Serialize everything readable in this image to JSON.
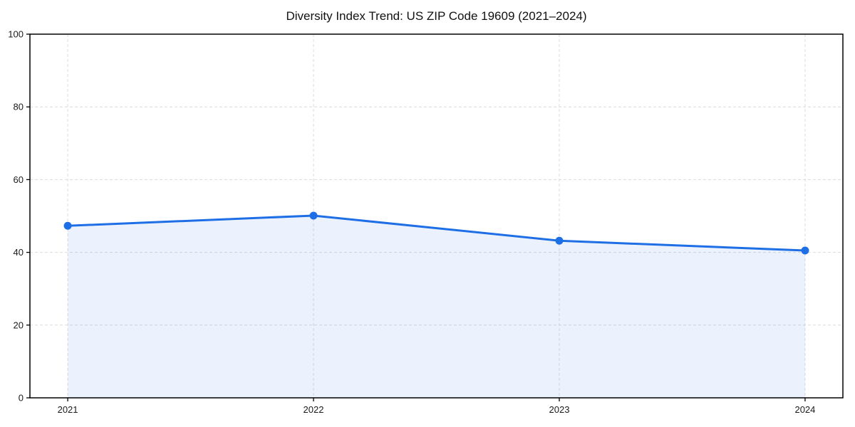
{
  "chart_data": {
    "type": "area",
    "title": "Diversity Index Trend: US ZIP Code 19609 (2021–2024)",
    "x": [
      "2021",
      "2022",
      "2023",
      "2024"
    ],
    "series": [
      {
        "name": "Diversity Index",
        "values": [
          47.3,
          50.1,
          43.2,
          40.5
        ]
      }
    ],
    "xlabel": "",
    "ylabel": "",
    "ylim": [
      0,
      100
    ],
    "yticks": [
      0,
      20,
      40,
      60,
      80,
      100
    ],
    "grid": "dashed-both-axes",
    "legend_position": "none",
    "marker": "circle",
    "colors": {
      "line": "#1e6ee6",
      "marker": "#1e6ee6",
      "fill": "#1e6ee6",
      "grid": "#dcdcdc",
      "axis": "#000000",
      "text": "#1a1a1a",
      "background": "#ffffff"
    },
    "fill_opacity": 0.09
  }
}
